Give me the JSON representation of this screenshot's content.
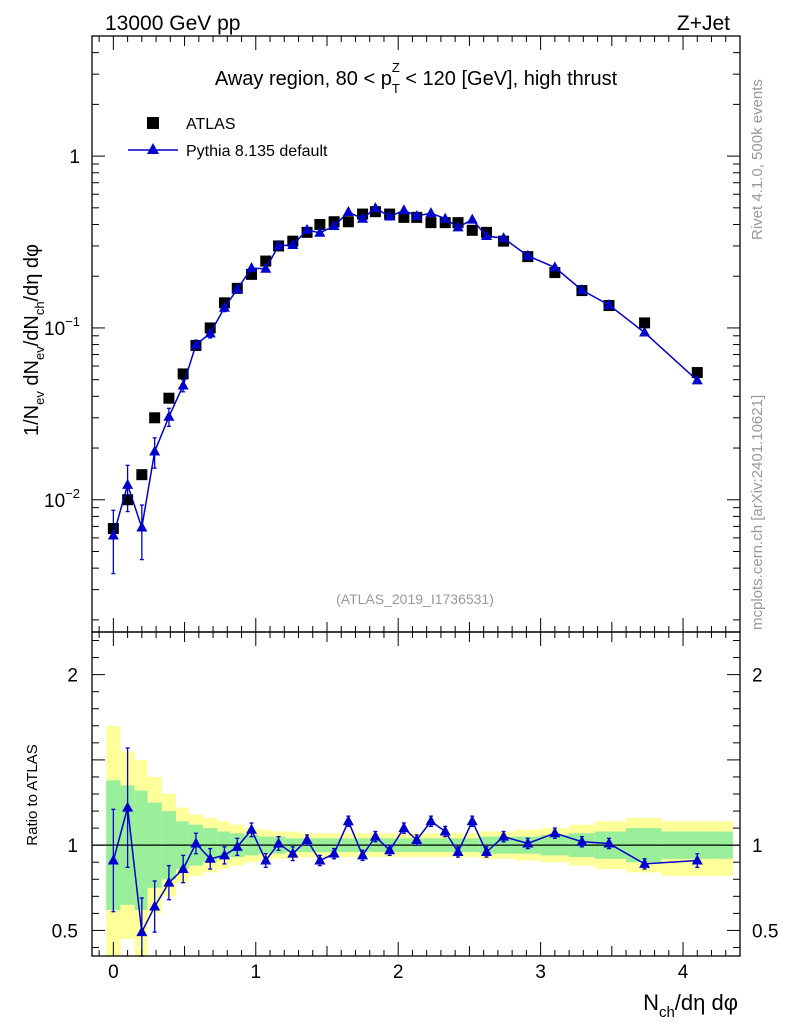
{
  "header": {
    "energy_process": "13000 GeV pp",
    "analysis_type": "Z+Jet"
  },
  "side_notes": {
    "rivet": "Rivet 4.1.0,  500k events",
    "site": "mcplots.cern.ch [arXiv:2401.10621]"
  },
  "colors": {
    "mc": "#0000cc",
    "data": "#000000",
    "band_inner": "#99ee99",
    "band_outer": "#ffff99"
  },
  "chart_data": [
    {
      "type": "scatter",
      "panel": "main",
      "title": "Away region, 80 < p_T^Z < 120 [GeV], high thrust",
      "title_parts": {
        "before": "Away region, 80 < p",
        "sup": "Z",
        "sub": "T",
        "after": " < 120 [GeV], high thrust"
      },
      "ylabel": "1/N_ev dN_ev/dN_ch/dη dφ",
      "ylabel_parts": {
        "a": "1/N",
        "a_sub": "ev",
        "b": " dN",
        "b_sub": "ev",
        "c": "/dN",
        "c_sub": "ch",
        "d": "/dη dφ"
      },
      "yscale": "log",
      "ylim": [
        0.0017,
        5.0
      ],
      "xlim": [
        -0.15,
        4.4
      ],
      "reference": "(ATLAS_2019_I1736531)",
      "y_tick_labels": [
        {
          "value": 1,
          "base": "1",
          "exp": ""
        },
        {
          "value": 0.1,
          "base": "10",
          "exp": "−1"
        },
        {
          "value": 0.01,
          "base": "10",
          "exp": "−2"
        }
      ],
      "legend": {
        "position": "top-left",
        "entries": [
          "ATLAS",
          "Pythia 8.135 default"
        ]
      },
      "series": [
        {
          "name": "ATLAS",
          "marker": "square",
          "x": [
            0.0,
            0.1,
            0.2,
            0.29,
            0.39,
            0.49,
            0.58,
            0.68,
            0.78,
            0.87,
            0.97,
            1.07,
            1.16,
            1.26,
            1.36,
            1.45,
            1.55,
            1.65,
            1.75,
            1.84,
            1.94,
            2.04,
            2.13,
            2.23,
            2.33,
            2.42,
            2.52,
            2.62,
            2.74,
            2.91,
            3.1,
            3.29,
            3.48,
            3.73,
            4.1
          ],
          "y": [
            0.0068,
            0.01,
            0.014,
            0.03,
            0.039,
            0.054,
            0.079,
            0.1,
            0.14,
            0.17,
            0.205,
            0.245,
            0.3,
            0.32,
            0.36,
            0.4,
            0.415,
            0.415,
            0.46,
            0.475,
            0.46,
            0.44,
            0.44,
            0.41,
            0.41,
            0.41,
            0.37,
            0.36,
            0.32,
            0.26,
            0.21,
            0.165,
            0.135,
            0.107,
            0.055
          ]
        },
        {
          "name": "Pythia 8.135 default",
          "marker": "triangle",
          "x": [
            0.0,
            0.1,
            0.2,
            0.29,
            0.39,
            0.49,
            0.58,
            0.68,
            0.78,
            0.87,
            0.97,
            1.07,
            1.16,
            1.26,
            1.36,
            1.45,
            1.55,
            1.65,
            1.75,
            1.84,
            1.94,
            2.04,
            2.13,
            2.23,
            2.33,
            2.42,
            2.52,
            2.62,
            2.74,
            2.91,
            3.1,
            3.29,
            3.48,
            3.73,
            4.1
          ],
          "y": [
            0.0062,
            0.0122,
            0.0069,
            0.0191,
            0.0304,
            0.0462,
            0.08,
            0.093,
            0.131,
            0.168,
            0.223,
            0.221,
            0.301,
            0.304,
            0.372,
            0.358,
            0.392,
            0.473,
            0.432,
            0.498,
            0.445,
            0.484,
            0.448,
            0.466,
            0.432,
            0.385,
            0.427,
            0.343,
            0.333,
            0.263,
            0.225,
            0.166,
            0.136,
            0.094,
            0.0495
          ],
          "err_rel": [
            0.4,
            0.3,
            0.35,
            0.2,
            0.12,
            0.08,
            0.06,
            0.06,
            0.05,
            0.05,
            0.04,
            0.04,
            0.04,
            0.04,
            0.03,
            0.03,
            0.03,
            0.03,
            0.03,
            0.03,
            0.03,
            0.03,
            0.03,
            0.03,
            0.03,
            0.03,
            0.03,
            0.03,
            0.03,
            0.03,
            0.03,
            0.03,
            0.03,
            0.03,
            0.04
          ]
        }
      ]
    },
    {
      "type": "line",
      "panel": "ratio",
      "xlabel": "N_ch/dη dφ",
      "xlabel_parts": {
        "a": "N",
        "a_sub": "ch",
        "b": "/dη dφ"
      },
      "ylabel": "Ratio to ATLAS",
      "ylim": [
        0.35,
        2.25
      ],
      "xlim": [
        -0.15,
        4.4
      ],
      "x_tick_labels": [
        "0",
        "1",
        "2",
        "3",
        "4"
      ],
      "y_tick_labels": [
        "2",
        "1",
        "0.5"
      ],
      "reference_line": 1.0,
      "bins": [
        {
          "lo": -0.05,
          "hi": 0.05,
          "inner": [
            0.62,
            1.38
          ],
          "outer": [
            0.3,
            1.7
          ]
        },
        {
          "lo": 0.05,
          "hi": 0.15,
          "inner": [
            0.65,
            1.35
          ],
          "outer": [
            0.45,
            1.55
          ]
        },
        {
          "lo": 0.15,
          "hi": 0.24,
          "inner": [
            0.62,
            1.32
          ],
          "outer": [
            0.35,
            1.5
          ]
        },
        {
          "lo": 0.24,
          "hi": 0.34,
          "inner": [
            0.75,
            1.25
          ],
          "outer": [
            0.6,
            1.4
          ]
        },
        {
          "lo": 0.34,
          "hi": 0.44,
          "inner": [
            0.8,
            1.2
          ],
          "outer": [
            0.7,
            1.3
          ]
        },
        {
          "lo": 0.44,
          "hi": 0.53,
          "inner": [
            0.86,
            1.14
          ],
          "outer": [
            0.78,
            1.22
          ]
        },
        {
          "lo": 0.53,
          "hi": 0.63,
          "inner": [
            0.88,
            1.12
          ],
          "outer": [
            0.82,
            1.18
          ]
        },
        {
          "lo": 0.63,
          "hi": 0.73,
          "inner": [
            0.9,
            1.1
          ],
          "outer": [
            0.84,
            1.16
          ]
        },
        {
          "lo": 0.73,
          "hi": 0.82,
          "inner": [
            0.92,
            1.08
          ],
          "outer": [
            0.86,
            1.14
          ]
        },
        {
          "lo": 0.82,
          "hi": 0.92,
          "inner": [
            0.93,
            1.07
          ],
          "outer": [
            0.88,
            1.12
          ]
        },
        {
          "lo": 0.92,
          "hi": 1.02,
          "inner": [
            0.94,
            1.06
          ],
          "outer": [
            0.9,
            1.1
          ]
        },
        {
          "lo": 1.02,
          "hi": 1.12,
          "inner": [
            0.95,
            1.05
          ],
          "outer": [
            0.91,
            1.09
          ]
        },
        {
          "lo": 1.12,
          "hi": 1.21,
          "inner": [
            0.95,
            1.05
          ],
          "outer": [
            0.92,
            1.08
          ]
        },
        {
          "lo": 1.21,
          "hi": 1.31,
          "inner": [
            0.96,
            1.04
          ],
          "outer": [
            0.92,
            1.08
          ]
        },
        {
          "lo": 1.31,
          "hi": 1.41,
          "inner": [
            0.96,
            1.04
          ],
          "outer": [
            0.93,
            1.07
          ]
        },
        {
          "lo": 1.41,
          "hi": 1.5,
          "inner": [
            0.96,
            1.04
          ],
          "outer": [
            0.93,
            1.07
          ]
        },
        {
          "lo": 1.5,
          "hi": 1.6,
          "inner": [
            0.96,
            1.04
          ],
          "outer": [
            0.93,
            1.07
          ]
        },
        {
          "lo": 1.6,
          "hi": 1.7,
          "inner": [
            0.96,
            1.04
          ],
          "outer": [
            0.93,
            1.07
          ]
        },
        {
          "lo": 1.7,
          "hi": 1.79,
          "inner": [
            0.96,
            1.04
          ],
          "outer": [
            0.93,
            1.07
          ]
        },
        {
          "lo": 1.79,
          "hi": 1.89,
          "inner": [
            0.96,
            1.04
          ],
          "outer": [
            0.93,
            1.07
          ]
        },
        {
          "lo": 1.89,
          "hi": 1.99,
          "inner": [
            0.96,
            1.04
          ],
          "outer": [
            0.93,
            1.07
          ]
        },
        {
          "lo": 1.99,
          "hi": 2.08,
          "inner": [
            0.96,
            1.04
          ],
          "outer": [
            0.93,
            1.07
          ]
        },
        {
          "lo": 2.08,
          "hi": 2.18,
          "inner": [
            0.96,
            1.04
          ],
          "outer": [
            0.93,
            1.07
          ]
        },
        {
          "lo": 2.18,
          "hi": 2.28,
          "inner": [
            0.96,
            1.04
          ],
          "outer": [
            0.93,
            1.07
          ]
        },
        {
          "lo": 2.28,
          "hi": 2.37,
          "inner": [
            0.96,
            1.04
          ],
          "outer": [
            0.93,
            1.07
          ]
        },
        {
          "lo": 2.37,
          "hi": 2.47,
          "inner": [
            0.96,
            1.04
          ],
          "outer": [
            0.93,
            1.07
          ]
        },
        {
          "lo": 2.47,
          "hi": 2.57,
          "inner": [
            0.96,
            1.04
          ],
          "outer": [
            0.93,
            1.07
          ]
        },
        {
          "lo": 2.57,
          "hi": 2.67,
          "inner": [
            0.95,
            1.05
          ],
          "outer": [
            0.92,
            1.08
          ]
        },
        {
          "lo": 2.67,
          "hi": 2.82,
          "inner": [
            0.95,
            1.05
          ],
          "outer": [
            0.92,
            1.08
          ]
        },
        {
          "lo": 2.82,
          "hi": 3.0,
          "inner": [
            0.95,
            1.05
          ],
          "outer": [
            0.91,
            1.09
          ]
        },
        {
          "lo": 3.0,
          "hi": 3.2,
          "inner": [
            0.94,
            1.06
          ],
          "outer": [
            0.9,
            1.1
          ]
        },
        {
          "lo": 3.2,
          "hi": 3.38,
          "inner": [
            0.93,
            1.07
          ],
          "outer": [
            0.88,
            1.12
          ]
        },
        {
          "lo": 3.38,
          "hi": 3.6,
          "inner": [
            0.92,
            1.08
          ],
          "outer": [
            0.86,
            1.14
          ]
        },
        {
          "lo": 3.6,
          "hi": 3.85,
          "inner": [
            0.9,
            1.1
          ],
          "outer": [
            0.84,
            1.16
          ]
        },
        {
          "lo": 3.85,
          "hi": 4.35,
          "inner": [
            0.92,
            1.08
          ],
          "outer": [
            0.82,
            1.14
          ]
        }
      ],
      "series": [
        {
          "name": "Pythia 8.135 default / ATLAS",
          "x": [
            0.0,
            0.1,
            0.2,
            0.29,
            0.39,
            0.49,
            0.58,
            0.68,
            0.78,
            0.87,
            0.97,
            1.07,
            1.16,
            1.26,
            1.36,
            1.45,
            1.55,
            1.65,
            1.75,
            1.84,
            1.94,
            2.04,
            2.13,
            2.23,
            2.33,
            2.42,
            2.52,
            2.62,
            2.74,
            2.91,
            3.1,
            3.29,
            3.48,
            3.73,
            4.1
          ],
          "y": [
            0.91,
            1.22,
            0.49,
            0.64,
            0.78,
            0.86,
            1.01,
            0.92,
            0.94,
            0.99,
            1.09,
            0.91,
            1.01,
            0.95,
            1.03,
            0.91,
            0.95,
            1.14,
            0.94,
            1.05,
            0.97,
            1.1,
            1.03,
            1.14,
            1.08,
            0.96,
            1.14,
            0.96,
            1.05,
            1.01,
            1.07,
            1.02,
            1.01,
            0.89,
            0.91
          ],
          "err": [
            0.3,
            0.35,
            0.2,
            0.15,
            0.1,
            0.08,
            0.06,
            0.06,
            0.05,
            0.05,
            0.04,
            0.04,
            0.04,
            0.04,
            0.03,
            0.03,
            0.03,
            0.03,
            0.03,
            0.03,
            0.03,
            0.03,
            0.03,
            0.03,
            0.03,
            0.03,
            0.03,
            0.03,
            0.03,
            0.03,
            0.03,
            0.03,
            0.03,
            0.03,
            0.04
          ]
        }
      ]
    }
  ]
}
